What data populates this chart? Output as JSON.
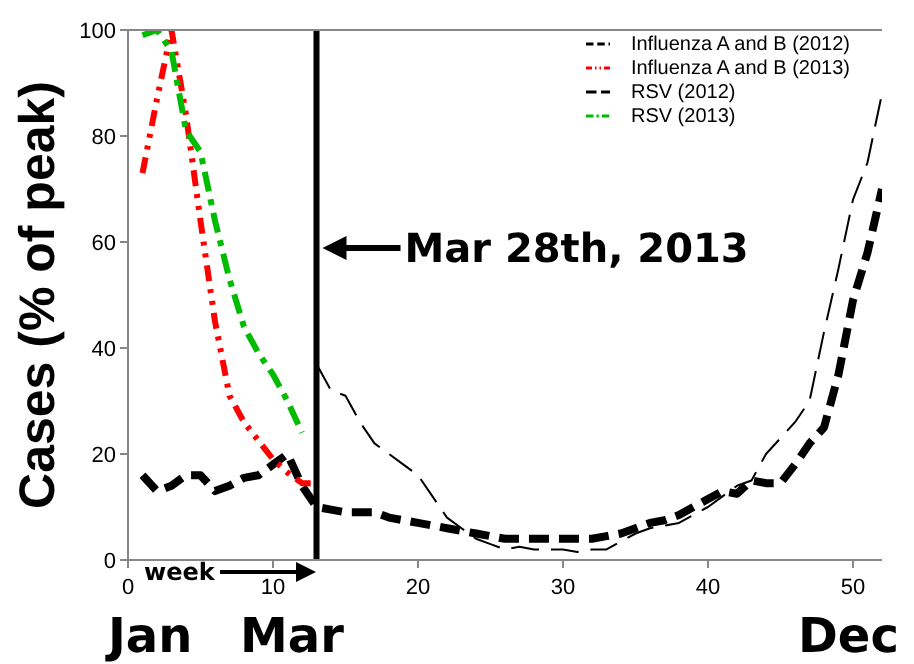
{
  "chart_data": {
    "type": "line",
    "ylabel": "Cases (% of peak)",
    "x": [
      1,
      2,
      3,
      4,
      5,
      6,
      7,
      8,
      9,
      10,
      11,
      12,
      13,
      14,
      15,
      16,
      17,
      18,
      19,
      20,
      21,
      22,
      23,
      24,
      25,
      26,
      27,
      28,
      29,
      30,
      31,
      32,
      33,
      34,
      35,
      36,
      37,
      38,
      39,
      40,
      41,
      42,
      43,
      44,
      45,
      46,
      47,
      48,
      49,
      50,
      51,
      52
    ],
    "series": [
      {
        "name": "Influenza A and B (2012)",
        "color": "#000000",
        "line_style": "dashed",
        "values": [
          16,
          13,
          14,
          16,
          16,
          13,
          14,
          15.5,
          16,
          18,
          20,
          14,
          10,
          9.5,
          9,
          9,
          9,
          8,
          7.5,
          7,
          6.5,
          6,
          5.5,
          5,
          4.5,
          4,
          4,
          4,
          4,
          4,
          4,
          4,
          4.5,
          5,
          6,
          7,
          7.5,
          8.5,
          10,
          11.5,
          13,
          12.5,
          15,
          14.5,
          14.5,
          18,
          22,
          25,
          35,
          49,
          58,
          70
        ]
      },
      {
        "name": "Influenza A and B (2013)",
        "color": "#ff0000",
        "line_style": "dashed",
        "values": [
          73,
          87,
          100,
          84,
          64,
          45,
          31,
          26,
          22.5,
          19,
          16.5,
          14.5,
          14.5,
          null,
          null,
          null,
          null,
          null,
          null,
          null,
          null,
          null,
          null,
          null,
          null,
          null,
          null,
          null,
          null,
          null,
          null,
          null,
          null,
          null,
          null,
          null,
          null,
          null,
          null,
          null,
          null,
          null,
          null,
          null,
          null,
          null,
          null,
          null,
          null,
          null,
          null,
          null
        ]
      },
      {
        "name": "RSV (2012)",
        "color": "#000000",
        "line_style": "dashed",
        "values": [
          null,
          null,
          null,
          null,
          null,
          null,
          null,
          null,
          null,
          null,
          null,
          null,
          37,
          32,
          31,
          26,
          22,
          20,
          18,
          16,
          12,
          8,
          6,
          4,
          3,
          2,
          2.5,
          2,
          2,
          2,
          1.5,
          2,
          2,
          3.5,
          5,
          6,
          6.5,
          7,
          8.5,
          10,
          12,
          14,
          15,
          20,
          23,
          26,
          30,
          43,
          55,
          68,
          75,
          88
        ]
      },
      {
        "name": "RSV (2013)",
        "color": "#00bb00",
        "line_style": "dashed",
        "values": [
          99,
          100,
          96,
          81,
          77,
          64,
          53,
          44,
          39,
          35,
          30,
          24,
          null,
          null,
          null,
          null,
          null,
          null,
          null,
          null,
          null,
          null,
          null,
          null,
          null,
          null,
          null,
          null,
          null,
          null,
          null,
          null,
          null,
          null,
          null,
          null,
          null,
          null,
          null,
          null,
          null,
          null,
          null,
          null,
          null,
          null,
          null,
          null,
          null,
          null,
          null,
          null
        ]
      }
    ],
    "xlim": [
      0,
      52
    ],
    "xticks": [
      0,
      10,
      20,
      30,
      40,
      50
    ],
    "ylim": [
      0,
      100
    ],
    "yticks": [
      0,
      20,
      40,
      60,
      80,
      100
    ],
    "ref_lines": [
      {
        "axis": "x",
        "value": 13,
        "label": "Mar 28th, 2013",
        "color": "#000000",
        "line_style": "solid"
      }
    ],
    "annotations": [
      "week",
      "Jan",
      "Mar",
      "Dec"
    ],
    "grid": false,
    "legend": "top right",
    "marker": "none"
  }
}
